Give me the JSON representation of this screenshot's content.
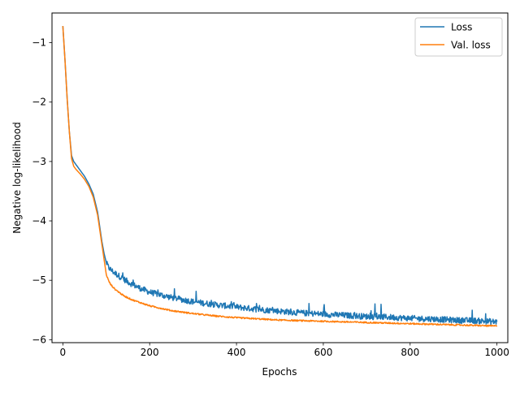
{
  "chart_data": {
    "type": "line",
    "xlabel": "Epochs",
    "ylabel": "Negative log-likelihood",
    "xlim": [
      -25,
      1025
    ],
    "ylim": [
      -6.05,
      -0.5
    ],
    "x_ticks": [
      0,
      200,
      400,
      600,
      800,
      1000
    ],
    "x_tick_labels": [
      "0",
      "200",
      "400",
      "600",
      "800",
      "1000"
    ],
    "y_ticks": [
      -1,
      -2,
      -3,
      -4,
      -5,
      -6
    ],
    "y_tick_labels": [
      "−1",
      "−2",
      "−3",
      "−4",
      "−5",
      "−6"
    ],
    "legend_position": "top-right",
    "grid": false,
    "series": [
      {
        "name": "Loss",
        "color": "#1f77b4",
        "noise": 0.05,
        "x": [
          0,
          5,
          10,
          15,
          20,
          25,
          30,
          40,
          50,
          60,
          70,
          80,
          85,
          90,
          95,
          100,
          105,
          110,
          120,
          140,
          160,
          180,
          200,
          250,
          300,
          350,
          400,
          450,
          500,
          550,
          600,
          650,
          700,
          750,
          800,
          850,
          900,
          950,
          1000
        ],
        "values": [
          -0.72,
          -1.3,
          -1.95,
          -2.5,
          -2.9,
          -3.0,
          -3.05,
          -3.15,
          -3.25,
          -3.38,
          -3.55,
          -3.85,
          -4.1,
          -4.35,
          -4.55,
          -4.7,
          -4.78,
          -4.82,
          -4.88,
          -4.98,
          -5.07,
          -5.14,
          -5.2,
          -5.29,
          -5.36,
          -5.41,
          -5.45,
          -5.49,
          -5.52,
          -5.55,
          -5.57,
          -5.59,
          -5.61,
          -5.62,
          -5.64,
          -5.65,
          -5.67,
          -5.68,
          -5.7
        ]
      },
      {
        "name": "Val. loss",
        "color": "#ff7f0e",
        "noise": 0.012,
        "x": [
          0,
          5,
          10,
          15,
          20,
          25,
          30,
          40,
          50,
          60,
          70,
          80,
          85,
          90,
          95,
          100,
          105,
          110,
          120,
          140,
          160,
          180,
          200,
          250,
          300,
          350,
          400,
          450,
          500,
          550,
          600,
          650,
          700,
          750,
          800,
          850,
          900,
          950,
          1000
        ],
        "values": [
          -0.72,
          -1.3,
          -1.95,
          -2.5,
          -2.95,
          -3.08,
          -3.13,
          -3.21,
          -3.3,
          -3.42,
          -3.6,
          -3.9,
          -4.15,
          -4.4,
          -4.65,
          -4.9,
          -5.0,
          -5.07,
          -5.15,
          -5.26,
          -5.33,
          -5.38,
          -5.43,
          -5.51,
          -5.56,
          -5.6,
          -5.63,
          -5.65,
          -5.67,
          -5.68,
          -5.69,
          -5.7,
          -5.71,
          -5.72,
          -5.73,
          -5.74,
          -5.75,
          -5.76,
          -5.77
        ]
      }
    ]
  }
}
